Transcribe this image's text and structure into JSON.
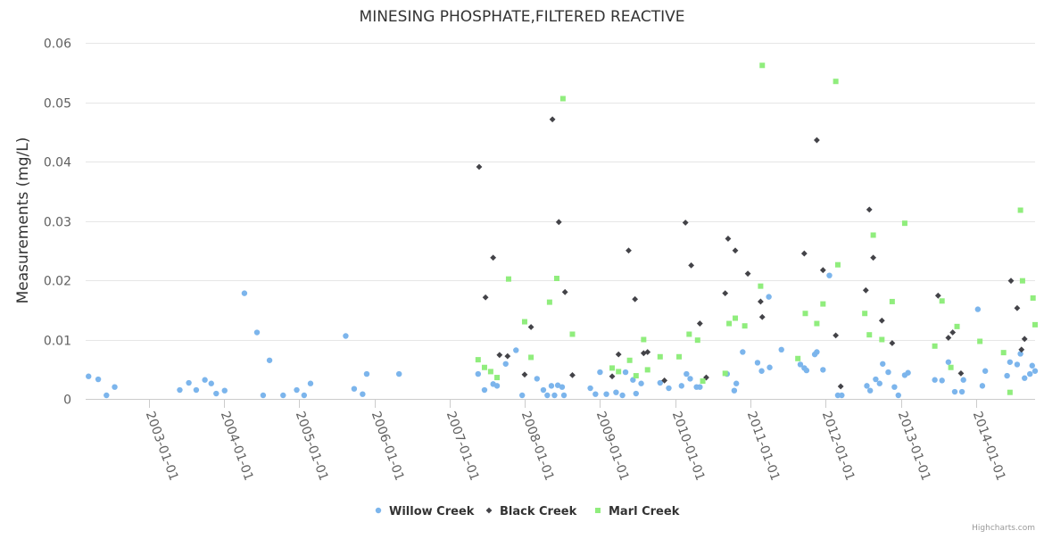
{
  "chart_data": {
    "type": "scatter",
    "title": "MINESING PHOSPHATE,FILTERED REACTIVE",
    "ylabel": "Measurements (mg/L)",
    "xlabel": "",
    "x_range": [
      "2002-03-01",
      "2014-10-15"
    ],
    "ylim": [
      0,
      0.06
    ],
    "y_ticks": [
      0,
      0.01,
      0.02,
      0.03,
      0.04,
      0.05,
      0.06
    ],
    "y_tick_labels": [
      "0",
      "0.01",
      "0.02",
      "0.03",
      "0.04",
      "0.05",
      "0.06"
    ],
    "x_ticks": [
      "2003-01-01",
      "2004-01-01",
      "2005-01-01",
      "2006-01-01",
      "2007-01-01",
      "2008-01-01",
      "2009-01-01",
      "2010-01-01",
      "2011-01-01",
      "2012-01-01",
      "2013-01-01",
      "2014-01-01"
    ],
    "grid": true,
    "legend_position": "bottom-center",
    "series": [
      {
        "name": "Willow Creek",
        "marker": "circle",
        "color": "#7cb5ec",
        "points": [
          [
            "2002-03-15",
            0.0038
          ],
          [
            "2002-05-01",
            0.0033
          ],
          [
            "2002-06-10",
            0.0006
          ],
          [
            "2002-07-20",
            0.002
          ],
          [
            "2003-06-01",
            0.0015
          ],
          [
            "2003-07-15",
            0.0027
          ],
          [
            "2003-08-20",
            0.0015
          ],
          [
            "2003-10-01",
            0.0032
          ],
          [
            "2003-11-01",
            0.0026
          ],
          [
            "2003-11-25",
            0.0009
          ],
          [
            "2004-01-05",
            0.0014
          ],
          [
            "2004-04-10",
            0.0178
          ],
          [
            "2004-06-10",
            0.0112
          ],
          [
            "2004-07-10",
            0.0006
          ],
          [
            "2004-08-10",
            0.0065
          ],
          [
            "2004-10-15",
            0.0006
          ],
          [
            "2004-12-20",
            0.0015
          ],
          [
            "2005-01-25",
            0.0006
          ],
          [
            "2005-02-25",
            0.0026
          ],
          [
            "2005-08-15",
            0.0106
          ],
          [
            "2005-09-25",
            0.0017
          ],
          [
            "2005-11-05",
            0.0008
          ],
          [
            "2005-11-25",
            0.0042
          ],
          [
            "2006-05-01",
            0.0042
          ],
          [
            "2007-05-20",
            0.0042
          ],
          [
            "2007-06-20",
            0.0015
          ],
          [
            "2007-08-01",
            0.0025
          ],
          [
            "2007-08-20",
            0.0022
          ],
          [
            "2007-10-01",
            0.0059
          ],
          [
            "2007-11-20",
            0.0082
          ],
          [
            "2007-12-20",
            0.0006
          ],
          [
            "2008-03-01",
            0.0034
          ],
          [
            "2008-04-01",
            0.0015
          ],
          [
            "2008-04-20",
            0.0006
          ],
          [
            "2008-05-10",
            0.0022
          ],
          [
            "2008-05-25",
            0.0006
          ],
          [
            "2008-06-10",
            0.0023
          ],
          [
            "2008-07-01",
            0.002
          ],
          [
            "2008-07-10",
            0.0006
          ],
          [
            "2008-11-15",
            0.0018
          ],
          [
            "2008-12-10",
            0.0008
          ],
          [
            "2009-01-01",
            0.0045
          ],
          [
            "2009-02-01",
            0.0008
          ],
          [
            "2009-03-20",
            0.0011
          ],
          [
            "2009-04-20",
            0.0006
          ],
          [
            "2009-05-05",
            0.0045
          ],
          [
            "2009-06-10",
            0.0032
          ],
          [
            "2009-06-25",
            0.0009
          ],
          [
            "2009-07-20",
            0.0026
          ],
          [
            "2009-10-20",
            0.0027
          ],
          [
            "2009-12-01",
            0.0018
          ],
          [
            "2010-02-01",
            0.0022
          ],
          [
            "2010-02-25",
            0.0042
          ],
          [
            "2010-03-15",
            0.0034
          ],
          [
            "2010-04-15",
            0.002
          ],
          [
            "2010-05-01",
            0.002
          ],
          [
            "2010-09-10",
            0.0042
          ],
          [
            "2010-10-15",
            0.0014
          ],
          [
            "2010-10-25",
            0.0026
          ],
          [
            "2010-11-25",
            0.0079
          ],
          [
            "2011-02-05",
            0.0061
          ],
          [
            "2011-02-25",
            0.0047
          ],
          [
            "2011-04-01",
            0.0172
          ],
          [
            "2011-04-05",
            0.0053
          ],
          [
            "2011-06-01",
            0.0083
          ],
          [
            "2011-09-01",
            0.0058
          ],
          [
            "2011-09-20",
            0.0052
          ],
          [
            "2011-10-01",
            0.0048
          ],
          [
            "2011-11-10",
            0.0075
          ],
          [
            "2011-11-20",
            0.0079
          ],
          [
            "2011-12-20",
            0.0049
          ],
          [
            "2012-01-20",
            0.0208
          ],
          [
            "2012-03-01",
            0.0006
          ],
          [
            "2012-03-20",
            0.0006
          ],
          [
            "2012-07-20",
            0.0022
          ],
          [
            "2012-08-05",
            0.0014
          ],
          [
            "2012-09-01",
            0.0033
          ],
          [
            "2012-09-20",
            0.0026
          ],
          [
            "2012-10-05",
            0.0059
          ],
          [
            "2012-11-01",
            0.0045
          ],
          [
            "2012-12-01",
            0.002
          ],
          [
            "2012-12-20",
            0.0006
          ],
          [
            "2013-01-20",
            0.004
          ],
          [
            "2013-02-05",
            0.0044
          ],
          [
            "2013-06-15",
            0.0032
          ],
          [
            "2013-07-20",
            0.0031
          ],
          [
            "2013-08-20",
            0.0062
          ],
          [
            "2013-09-20",
            0.0012
          ],
          [
            "2013-10-25",
            0.0012
          ],
          [
            "2013-11-01",
            0.0032
          ],
          [
            "2014-01-10",
            0.0151
          ],
          [
            "2014-02-01",
            0.0022
          ],
          [
            "2014-02-15",
            0.0047
          ],
          [
            "2014-06-01",
            0.0039
          ],
          [
            "2014-06-15",
            0.0062
          ],
          [
            "2014-07-20",
            0.0058
          ],
          [
            "2014-08-05",
            0.0076
          ],
          [
            "2014-08-25",
            0.0035
          ],
          [
            "2014-09-20",
            0.0042
          ],
          [
            "2014-10-01",
            0.0056
          ],
          [
            "2014-10-15",
            0.0047
          ]
        ]
      },
      {
        "name": "Black Creek",
        "marker": "diamond",
        "color": "#434348",
        "points": [
          [
            "2007-05-25",
            0.0391
          ],
          [
            "2007-06-25",
            0.0171
          ],
          [
            "2007-08-01",
            0.0238
          ],
          [
            "2007-09-01",
            0.0074
          ],
          [
            "2007-10-10",
            0.0072
          ],
          [
            "2008-01-01",
            0.0041
          ],
          [
            "2008-02-01",
            0.0121
          ],
          [
            "2008-05-15",
            0.0471
          ],
          [
            "2008-06-15",
            0.0298
          ],
          [
            "2008-07-15",
            0.018
          ],
          [
            "2008-08-20",
            0.004
          ],
          [
            "2009-03-01",
            0.0038
          ],
          [
            "2009-04-01",
            0.0075
          ],
          [
            "2009-05-20",
            0.025
          ],
          [
            "2009-06-20",
            0.0168
          ],
          [
            "2009-08-01",
            0.0077
          ],
          [
            "2009-08-20",
            0.0079
          ],
          [
            "2009-11-10",
            0.0031
          ],
          [
            "2010-02-20",
            0.0297
          ],
          [
            "2010-03-20",
            0.0225
          ],
          [
            "2010-05-01",
            0.0127
          ],
          [
            "2010-06-01",
            0.0036
          ],
          [
            "2010-09-01",
            0.0178
          ],
          [
            "2010-09-15",
            0.027
          ],
          [
            "2010-10-20",
            0.025
          ],
          [
            "2010-12-20",
            0.0211
          ],
          [
            "2011-02-20",
            0.0164
          ],
          [
            "2011-02-28",
            0.0138
          ],
          [
            "2011-09-20",
            0.0245
          ],
          [
            "2011-11-20",
            0.0436
          ],
          [
            "2011-12-20",
            0.0217
          ],
          [
            "2012-02-20",
            0.0107
          ],
          [
            "2012-03-15",
            0.0021
          ],
          [
            "2012-07-15",
            0.0183
          ],
          [
            "2012-08-01",
            0.0319
          ],
          [
            "2012-08-20",
            0.0238
          ],
          [
            "2012-10-01",
            0.0132
          ],
          [
            "2012-11-20",
            0.0094
          ],
          [
            "2013-07-01",
            0.0174
          ],
          [
            "2013-08-20",
            0.0103
          ],
          [
            "2013-09-10",
            0.0112
          ],
          [
            "2013-10-20",
            0.0043
          ],
          [
            "2014-06-20",
            0.0199
          ],
          [
            "2014-07-20",
            0.0153
          ],
          [
            "2014-08-10",
            0.0083
          ],
          [
            "2014-08-25",
            0.0101
          ]
        ]
      },
      {
        "name": "Marl Creek",
        "marker": "square",
        "color": "#90ed7d",
        "points": [
          [
            "2007-05-20",
            0.0066
          ],
          [
            "2007-06-20",
            0.0053
          ],
          [
            "2007-07-20",
            0.0046
          ],
          [
            "2007-08-20",
            0.0036
          ],
          [
            "2007-10-15",
            0.0202
          ],
          [
            "2008-01-01",
            0.013
          ],
          [
            "2008-02-01",
            0.007
          ],
          [
            "2008-05-01",
            0.0163
          ],
          [
            "2008-06-05",
            0.0203
          ],
          [
            "2008-07-05",
            0.0506
          ],
          [
            "2008-08-20",
            0.0109
          ],
          [
            "2009-03-01",
            0.0052
          ],
          [
            "2009-04-01",
            0.0046
          ],
          [
            "2009-05-25",
            0.0065
          ],
          [
            "2009-06-25",
            0.0039
          ],
          [
            "2009-08-01",
            0.01
          ],
          [
            "2009-08-20",
            0.0049
          ],
          [
            "2009-10-20",
            0.0071
          ],
          [
            "2010-01-20",
            0.0071
          ],
          [
            "2010-03-10",
            0.0109
          ],
          [
            "2010-04-20",
            0.0099
          ],
          [
            "2010-05-15",
            0.003
          ],
          [
            "2010-09-01",
            0.0043
          ],
          [
            "2010-09-20",
            0.0127
          ],
          [
            "2010-10-20",
            0.0136
          ],
          [
            "2010-12-05",
            0.0123
          ],
          [
            "2011-02-20",
            0.019
          ],
          [
            "2011-02-28",
            0.0562
          ],
          [
            "2011-08-20",
            0.0068
          ],
          [
            "2011-09-25",
            0.0144
          ],
          [
            "2011-11-20",
            0.0127
          ],
          [
            "2011-12-20",
            0.016
          ],
          [
            "2012-02-20",
            0.0535
          ],
          [
            "2012-03-01",
            0.0226
          ],
          [
            "2012-07-10",
            0.0144
          ],
          [
            "2012-08-01",
            0.0108
          ],
          [
            "2012-08-20",
            0.0276
          ],
          [
            "2012-10-01",
            0.01
          ],
          [
            "2012-11-20",
            0.0164
          ],
          [
            "2013-01-20",
            0.0296
          ],
          [
            "2013-06-15",
            0.0089
          ],
          [
            "2013-07-20",
            0.0165
          ],
          [
            "2013-09-01",
            0.0053
          ],
          [
            "2013-10-01",
            0.0122
          ],
          [
            "2014-01-20",
            0.0097
          ],
          [
            "2014-05-15",
            0.0078
          ],
          [
            "2014-06-15",
            0.0011
          ],
          [
            "2014-08-05",
            0.0318
          ],
          [
            "2014-08-15",
            0.0199
          ],
          [
            "2014-10-05",
            0.017
          ],
          [
            "2014-10-15",
            0.0125
          ]
        ]
      }
    ]
  },
  "credits": "Highcharts.com"
}
